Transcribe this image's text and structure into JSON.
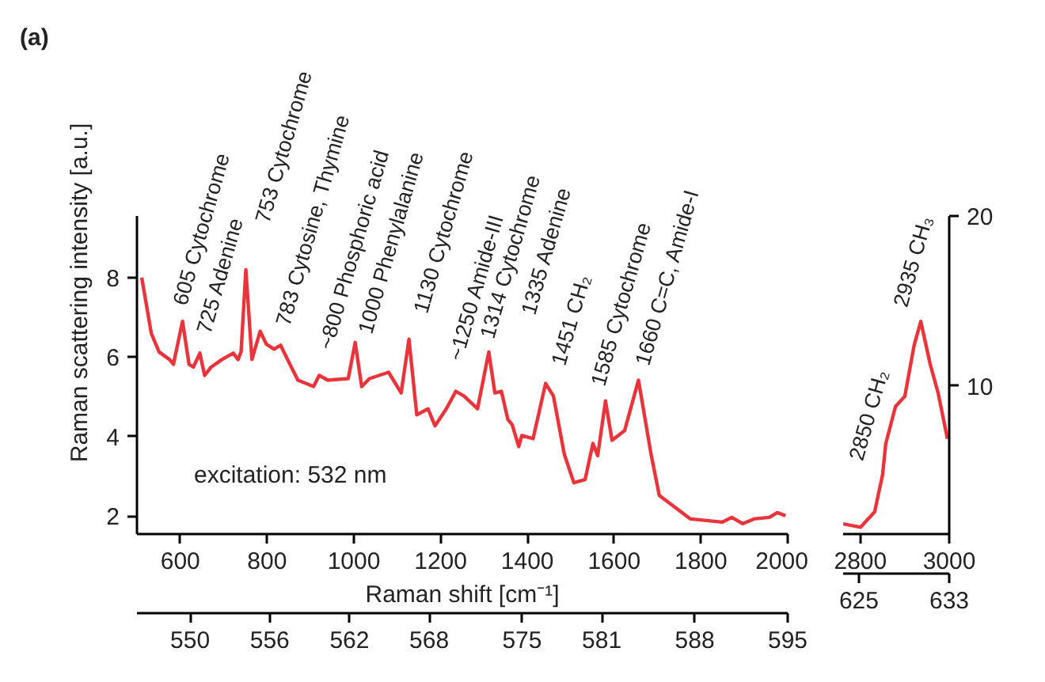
{
  "chart_data": [
    {
      "type": "line",
      "title": "(a)",
      "xlabel": "Raman shift [cm⁻¹]",
      "ylabel": "Raman scattering intensity [a.u.]",
      "grid": false,
      "xlim": [
        500,
        2000
      ],
      "xticks": [
        600,
        800,
        1000,
        1200,
        1400,
        1600,
        1800,
        2000
      ],
      "ylim": [
        1.55,
        9.55
      ],
      "yticks": [
        2,
        4,
        6,
        8
      ],
      "x2lim": [
        546,
        595
      ],
      "x2ticks": [
        550,
        556,
        562,
        568,
        575,
        581,
        588,
        595
      ],
      "series": [
        {
          "color": "#e8343a",
          "x": [
            511,
            533,
            551,
            575,
            584,
            605,
            620,
            630,
            645,
            656,
            671,
            696,
            722,
            733,
            740,
            751,
            765,
            784,
            798,
            816,
            831,
            849,
            871,
            907,
            920,
            940,
            987,
            1003,
            1018,
            1036,
            1080,
            1109,
            1127,
            1145,
            1171,
            1187,
            1213,
            1235,
            1254,
            1285,
            1311,
            1325,
            1340,
            1355,
            1365,
            1380,
            1387,
            1413,
            1442,
            1460,
            1485,
            1507,
            1533,
            1551,
            1562,
            1580,
            1595,
            1624,
            1656,
            1685,
            1704,
            1776,
            1849,
            1871,
            1896,
            1922,
            1958,
            1976,
            1995
          ],
          "values": [
            8.0,
            6.6,
            6.13,
            5.94,
            5.82,
            6.9,
            5.82,
            5.75,
            6.1,
            5.54,
            5.75,
            5.94,
            6.1,
            5.94,
            6.13,
            8.2,
            5.94,
            6.65,
            6.33,
            6.2,
            6.3,
            5.9,
            5.42,
            5.26,
            5.54,
            5.42,
            5.46,
            6.37,
            5.26,
            5.46,
            5.62,
            5.1,
            6.45,
            4.55,
            4.7,
            4.27,
            4.7,
            5.14,
            5.02,
            4.7,
            6.13,
            5.1,
            5.14,
            4.43,
            4.3,
            3.75,
            4.03,
            3.95,
            5.34,
            5.02,
            3.56,
            2.84,
            2.92,
            3.83,
            3.52,
            4.9,
            3.91,
            4.15,
            5.42,
            3.56,
            2.52,
            1.93,
            1.85,
            1.97,
            1.81,
            1.93,
            1.97,
            2.09,
            2.01
          ]
        }
      ],
      "annotations": [
        "605 Cytochrome",
        "725 Adenine",
        "753 Cytochrome",
        "783 Cytosine, Thymine",
        "~800 Phosphoric acid",
        "1000 Phenylalanine",
        "1130 Cytochrome",
        "~1250 Amide-III",
        "1314 Cytochrome",
        "1335 Adenine",
        "1451 CH₂",
        "1585 Cytochrome",
        "1660 C=C, Amide-I",
        "excitation: 532 nm"
      ]
    },
    {
      "type": "line",
      "grid": false,
      "xlim": [
        2761,
        3000
      ],
      "xticks": [
        2800,
        3000
      ],
      "y2lim": [
        1.3,
        20
      ],
      "y2ticks": [
        10,
        20
      ],
      "x2lim": [
        623.6,
        633
      ],
      "x2ticks": [
        625,
        633
      ],
      "series": [
        {
          "color": "#e8343a",
          "axis": "y2",
          "x": [
            2761,
            2800,
            2832,
            2850,
            2857,
            2879,
            2900,
            2921,
            2936,
            2957,
            2975,
            2996
          ],
          "values": [
            1.9,
            1.7,
            2.6,
            4.8,
            6.6,
            8.8,
            9.4,
            12.4,
            13.8,
            11.3,
            9.6,
            6.9
          ]
        }
      ],
      "annotations": [
        "2850 CH₂",
        "2935 CH₃"
      ]
    }
  ]
}
